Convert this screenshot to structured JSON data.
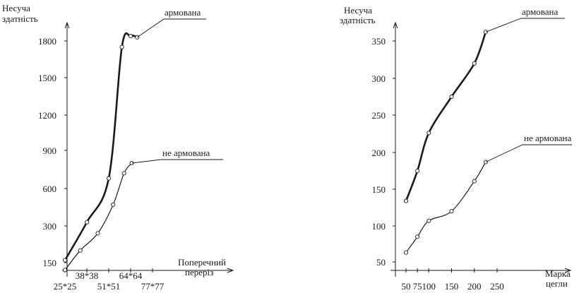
{
  "chart_data": [
    {
      "type": "line",
      "ylabel_line1": "Несуча",
      "ylabel_line2": "здатність",
      "xlabel_line1": "Поперечний",
      "xlabel_line2": "переріз",
      "categories": [
        "25*25",
        "38*38",
        "51*51",
        "64*64",
        "77*77"
      ],
      "yticks": [
        150,
        300,
        600,
        900,
        1200,
        1500,
        1800
      ],
      "series": [
        {
          "name": "армована",
          "x": [
            0,
            1,
            2,
            2.6,
            3,
            3.3
          ],
          "values": [
            160,
            330,
            680,
            1750,
            1840,
            1830
          ]
        },
        {
          "name": "не армована",
          "x": [
            0,
            0.7,
            1.5,
            2.2,
            2.7,
            3.05
          ],
          "values": [
            120,
            200,
            270,
            470,
            720,
            800
          ]
        }
      ]
    },
    {
      "type": "line",
      "ylabel_line1": "Несуча",
      "ylabel_line2": "здатність",
      "xlabel_line1": "Марка",
      "xlabel_line2": "цегли",
      "xticks": [
        50,
        75,
        100,
        150,
        200,
        250
      ],
      "yticks": [
        50,
        100,
        150,
        200,
        250,
        300,
        350
      ],
      "series": [
        {
          "name": "армована",
          "x": [
            50,
            75,
            100,
            150,
            200,
            225
          ],
          "values": [
            134,
            175,
            226,
            275,
            320,
            362
          ]
        },
        {
          "name": "не армована",
          "x": [
            50,
            75,
            100,
            150,
            200,
            225
          ],
          "values": [
            63,
            85,
            107,
            120,
            161,
            187
          ]
        }
      ]
    }
  ]
}
